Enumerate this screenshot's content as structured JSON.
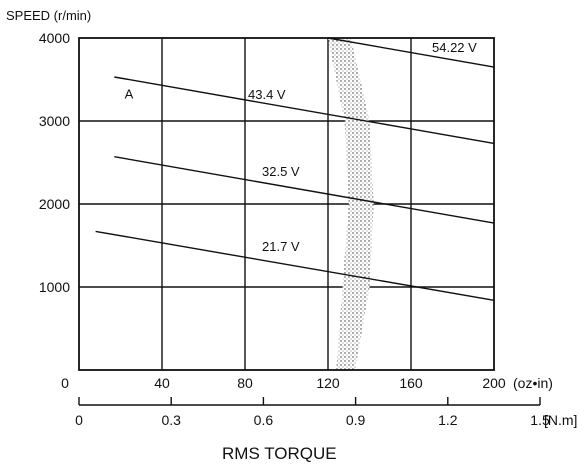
{
  "chart_data": {
    "type": "line",
    "ylabel": "SPEED (r/min)",
    "xlabel": "RMS TORQUE",
    "x_unit_primary": "(oz•in)",
    "x_unit_secondary": "[N.m]",
    "xlim": [
      0,
      200
    ],
    "ylim": [
      0,
      4000
    ],
    "x_ticks": [
      0,
      40,
      80,
      120,
      160,
      200
    ],
    "y_ticks": [
      1000,
      2000,
      3000,
      4000
    ],
    "y_tick_labels": [
      "1000",
      "2000",
      "3000",
      "4000"
    ],
    "x_secondary_tick_labels": [
      "0",
      "0.3",
      "0.6",
      "0.9",
      "1.2",
      "1.5"
    ],
    "grid": true,
    "series": [
      {
        "name": "21.7 V",
        "x": [
          8,
          200
        ],
        "y": [
          1670,
          840
        ]
      },
      {
        "name": "32.5 V",
        "x": [
          17,
          200
        ],
        "y": [
          2570,
          1770
        ]
      },
      {
        "name": "43.4 V",
        "x": [
          17,
          200
        ],
        "y": [
          3530,
          2730
        ]
      },
      {
        "name": "54.22 V",
        "x": [
          120,
          200
        ],
        "y": [
          4000,
          3650
        ]
      }
    ],
    "annotations": [
      {
        "text": "A",
        "x": 22,
        "y": 3270
      }
    ],
    "shaded_region": {
      "left_edge": [
        [
          120,
          4000
        ],
        [
          128,
          3000
        ],
        [
          130,
          2000
        ],
        [
          127,
          1000
        ],
        [
          124,
          0
        ]
      ],
      "right_edge": [
        [
          131,
          4000
        ],
        [
          140,
          3000
        ],
        [
          142,
          2000
        ],
        [
          140,
          1000
        ],
        [
          133,
          0
        ]
      ]
    }
  }
}
